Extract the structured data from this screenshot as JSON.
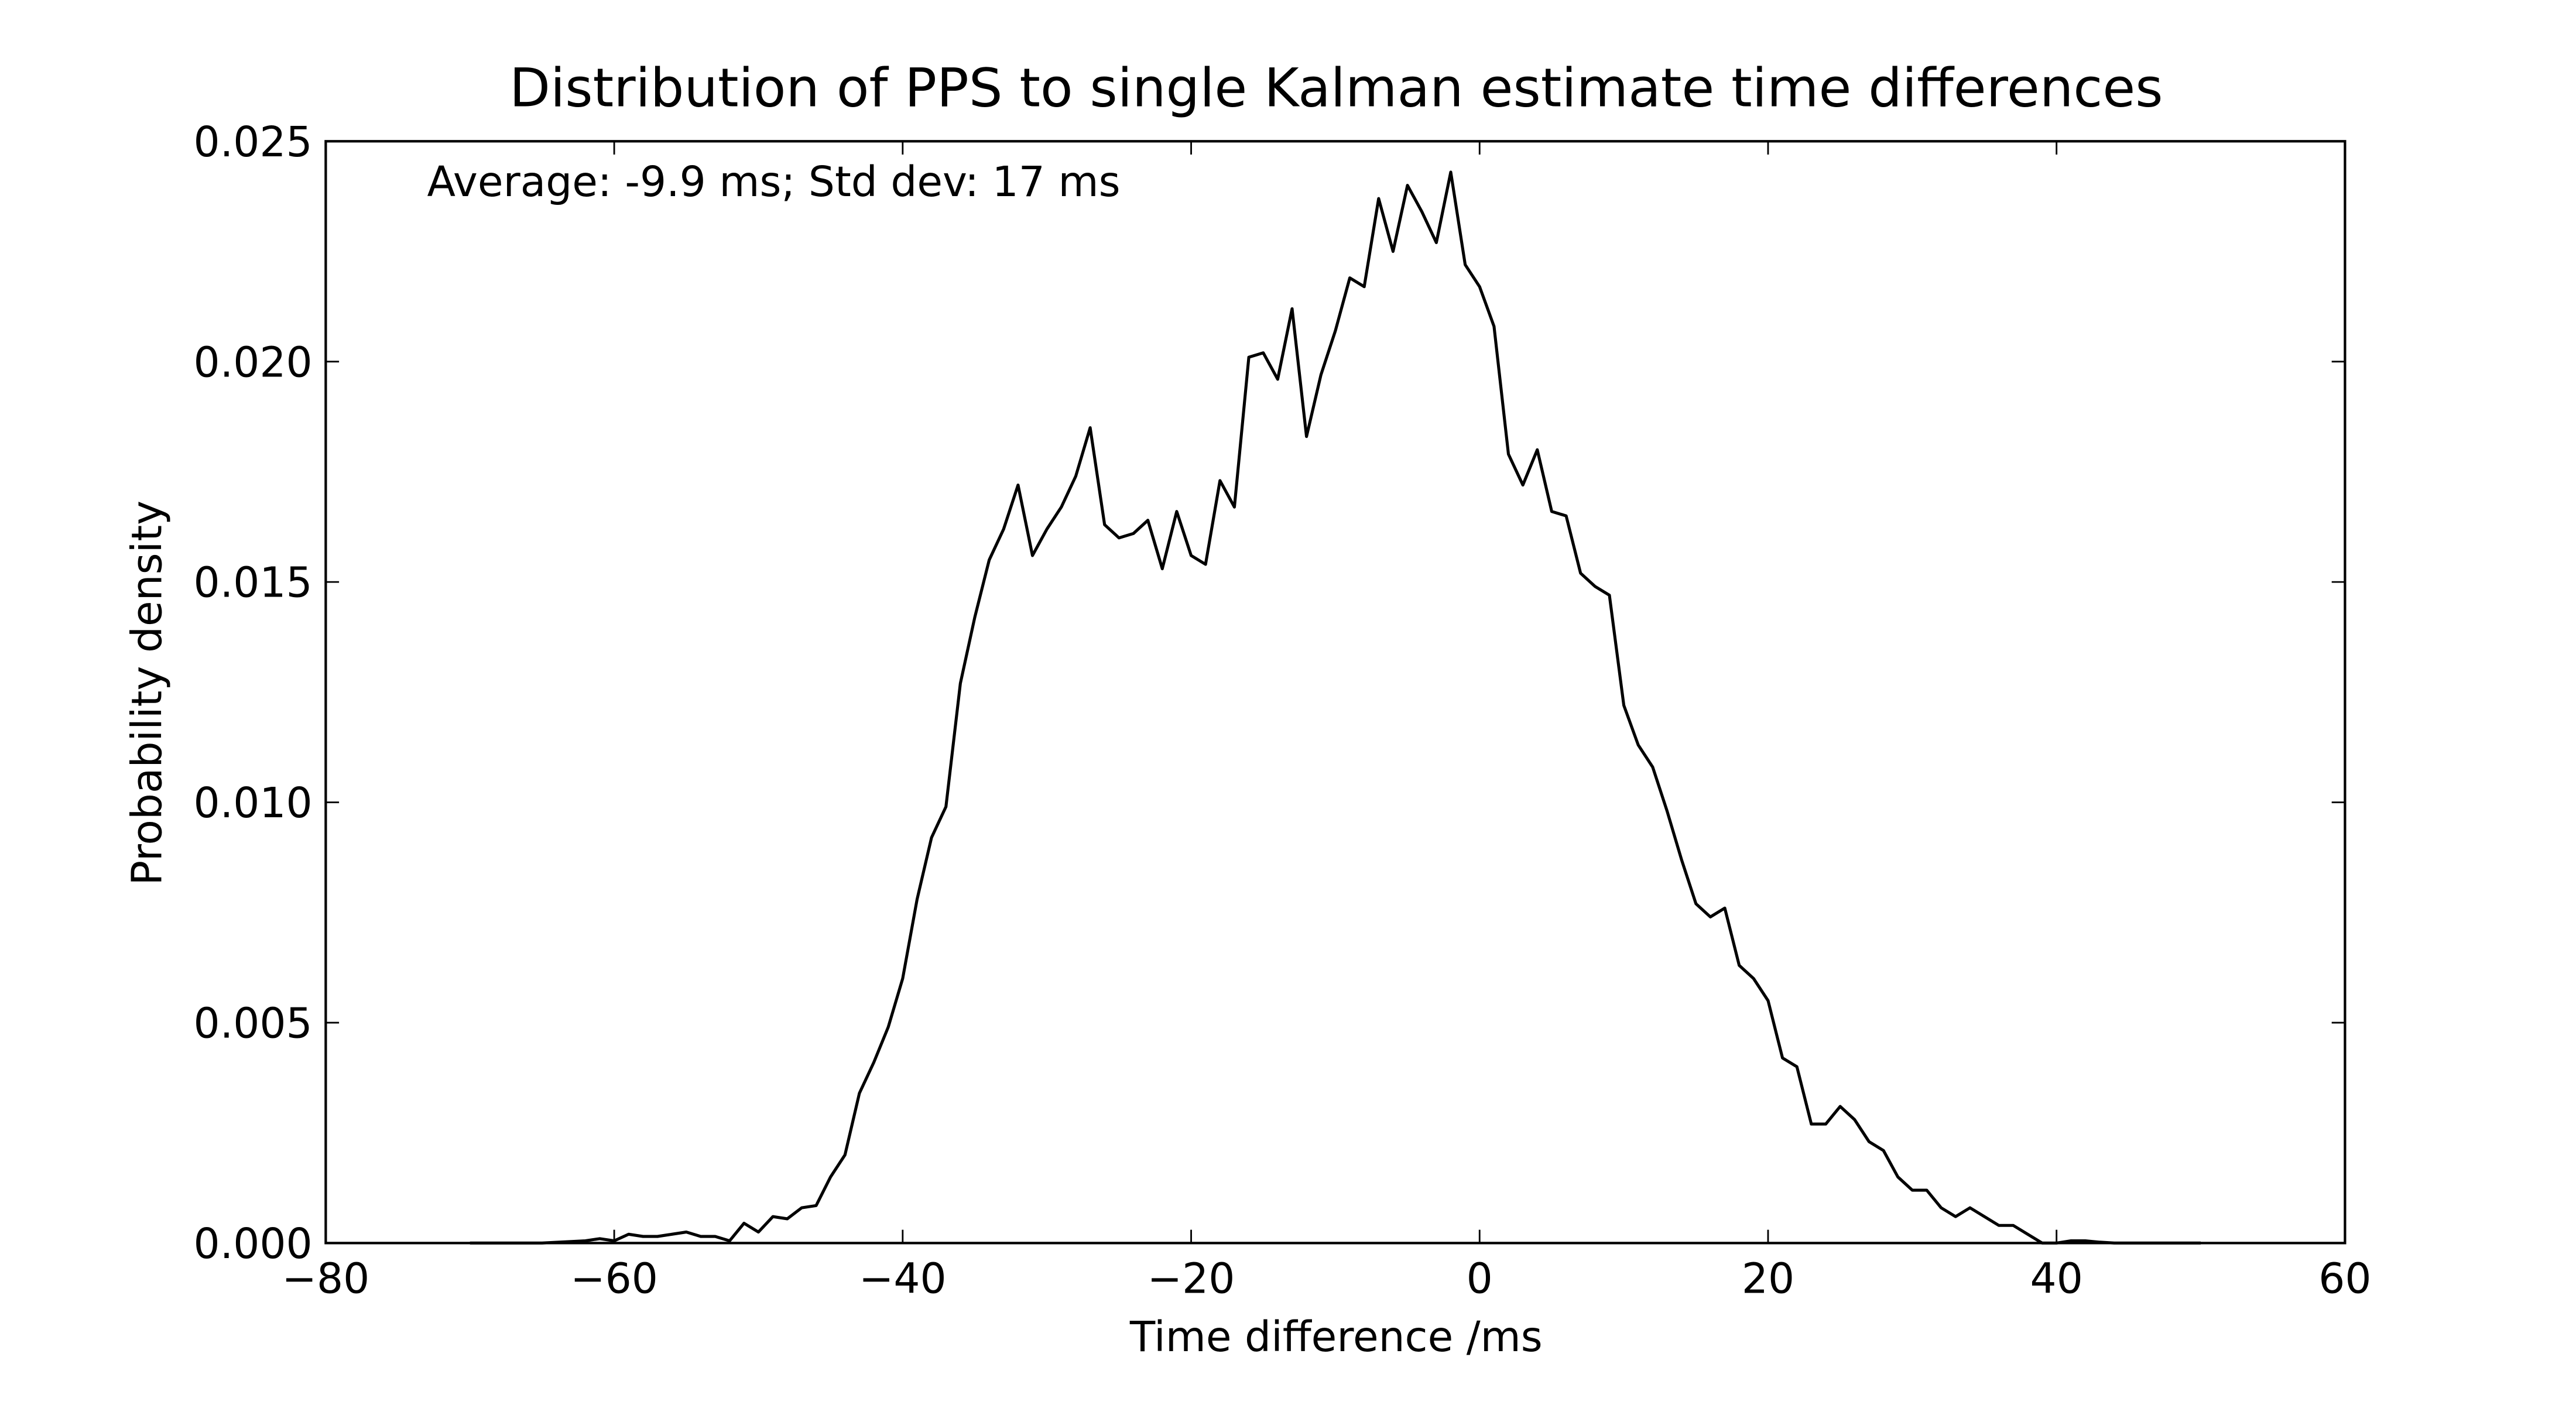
{
  "chart_data": {
    "type": "line",
    "title": "Distribution of PPS to single Kalman estimate time differences",
    "xlabel": "Time difference /ms",
    "ylabel": "Probability density",
    "annotation": "Average: -9.9 ms;  Std dev: 17 ms",
    "xlim": [
      -80,
      60
    ],
    "ylim": [
      0,
      0.025
    ],
    "xticks": [
      {
        "value": -80,
        "label": "−80"
      },
      {
        "value": -60,
        "label": "−60"
      },
      {
        "value": -40,
        "label": "−40"
      },
      {
        "value": -20,
        "label": "−20"
      },
      0,
      20,
      40,
      60
    ],
    "yticks": [
      {
        "value": 0,
        "label": "0.000"
      },
      {
        "value": 0.005,
        "label": "0.005"
      },
      {
        "value": 0.01,
        "label": "0.010"
      },
      {
        "value": 0.015,
        "label": "0.015"
      },
      {
        "value": 0.02,
        "label": "0.020"
      },
      {
        "value": 0.025,
        "label": "0.025"
      }
    ],
    "grid": false,
    "series": [
      {
        "color": "#000000",
        "x": [
          -70,
          -65,
          -62,
          -61,
          -60,
          -59,
          -58,
          -57,
          -56,
          -55,
          -54,
          -53,
          -52,
          -51,
          -50,
          -49,
          -48,
          -47,
          -46,
          -45,
          -44,
          -43,
          -42,
          -41,
          -40,
          -39,
          -38,
          -37,
          -36,
          -35,
          -34,
          -33,
          -32,
          -31,
          -30,
          -29,
          -28,
          -27,
          -26,
          -25,
          -24,
          -23,
          -22,
          -21,
          -20,
          -19,
          -18,
          -17,
          -16,
          -15,
          -14,
          -13,
          -12,
          -11,
          -10,
          -9,
          -8,
          -7,
          -6,
          -5,
          -4,
          -3,
          -2,
          -1,
          0,
          1,
          2,
          3,
          4,
          5,
          6,
          7,
          8,
          9,
          10,
          11,
          12,
          13,
          14,
          15,
          16,
          17,
          18,
          19,
          20,
          21,
          22,
          23,
          24,
          25,
          26,
          27,
          28,
          29,
          30,
          31,
          32,
          33,
          34,
          35,
          36,
          37,
          38,
          39,
          40,
          41,
          42,
          43,
          44,
          45,
          50
        ],
        "values": [
          0,
          0,
          5e-05,
          0.0001,
          5e-05,
          0.0002,
          0.00015,
          0.00015,
          0.0002,
          0.00025,
          0.00015,
          0.00015,
          5e-05,
          0.00045,
          0.00025,
          0.0006,
          0.00055,
          0.0008,
          0.00085,
          0.0015,
          0.002,
          0.0034,
          0.0041,
          0.0049,
          0.006,
          0.0078,
          0.0092,
          0.0099,
          0.0127,
          0.0142,
          0.0155,
          0.0162,
          0.0172,
          0.0156,
          0.0162,
          0.0167,
          0.0174,
          0.0185,
          0.0163,
          0.016,
          0.0161,
          0.0164,
          0.0153,
          0.0166,
          0.0156,
          0.0154,
          0.0173,
          0.0167,
          0.0201,
          0.0202,
          0.0196,
          0.0212,
          0.0183,
          0.0197,
          0.0207,
          0.0219,
          0.0217,
          0.0237,
          0.0225,
          0.024,
          0.0234,
          0.0227,
          0.0243,
          0.0222,
          0.0217,
          0.0208,
          0.0179,
          0.0172,
          0.018,
          0.0166,
          0.0165,
          0.0152,
          0.0149,
          0.0147,
          0.0122,
          0.0113,
          0.0108,
          0.0098,
          0.0087,
          0.0077,
          0.0074,
          0.0076,
          0.0063,
          0.006,
          0.0055,
          0.0042,
          0.004,
          0.0027,
          0.0027,
          0.0031,
          0.0028,
          0.0023,
          0.0021,
          0.0015,
          0.0012,
          0.0012,
          0.0008,
          0.0006,
          0.0008,
          0.0006,
          0.0004,
          0.0004,
          0.0002,
          0,
          0,
          5e-05,
          5e-05,
          2e-05,
          0,
          0,
          0
        ]
      }
    ]
  }
}
